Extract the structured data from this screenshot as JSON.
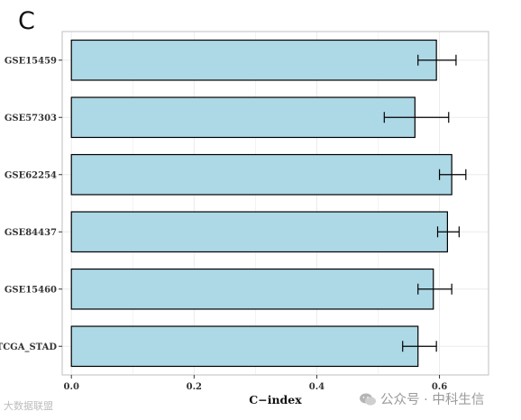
{
  "panel_label": "C",
  "watermarks": {
    "left": "大数据联盟",
    "right": "公众号 · 中科生信",
    "right_icon": "wechat-icon"
  },
  "colors": {
    "bar_fill": "#add8e6",
    "bar_stroke": "#000000",
    "grid": "#ebebeb",
    "panel_border": "#bfbfbf"
  },
  "chart_data": {
    "type": "bar",
    "orientation": "horizontal",
    "categories": [
      "GSE15459",
      "GSE57303",
      "GSE62254",
      "GSE84437",
      "GSE15460",
      "TCGA_STAD"
    ],
    "values": [
      0.595,
      0.56,
      0.62,
      0.613,
      0.59,
      0.565
    ],
    "error_low": [
      0.565,
      0.51,
      0.6,
      0.597,
      0.565,
      0.54
    ],
    "error_high": [
      0.627,
      0.615,
      0.643,
      0.632,
      0.62,
      0.595
    ],
    "xlabel": "C−index",
    "ylabel": "",
    "title": "",
    "xlim": [
      -0.015,
      0.68
    ],
    "xticks": [
      0.0,
      0.2,
      0.4,
      0.6
    ],
    "xtick_labels": [
      "0.0",
      "0.2",
      "0.4",
      "0.6"
    ],
    "grid": true,
    "legend": "none"
  }
}
